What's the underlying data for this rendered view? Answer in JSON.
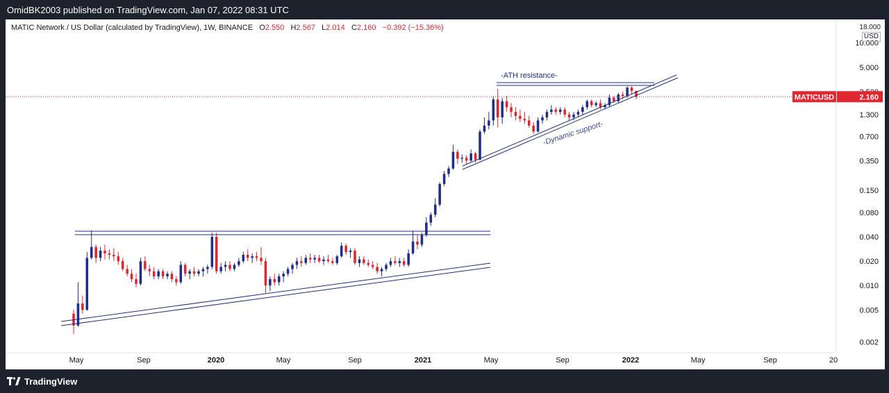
{
  "header": {
    "publisher_line": "OmidBK2003 published on TradingView.com, Jan 07, 2022 08:31 UTC"
  },
  "legend": {
    "symbol_title": "MATIC Network / US Dollar (calculated by TradingView), 1W, BINANCE",
    "open_label": "O",
    "open_value": "2.550",
    "high_label": "H",
    "high_value": "2.567",
    "low_label": "L",
    "low_value": "2.014",
    "close_label": "C",
    "close_value": "2.160",
    "change": "−0.392 (−15.36%)"
  },
  "price_scale": {
    "top_label": "18.000",
    "unit": "USD",
    "ticks": [
      "10.000",
      "5.000",
      "2.500",
      "1.300",
      "0.700",
      "0.350",
      "0.150",
      "0.080",
      "0.040",
      "0.020",
      "0.010",
      "0.005",
      "0.002"
    ],
    "current_symbol": "MATICUSD",
    "current_price": "2.160"
  },
  "time_scale": {
    "ticks": [
      "May",
      "Sep",
      "2020",
      "May",
      "Sep",
      "2021",
      "May",
      "Sep",
      "2022",
      "May",
      "Sep",
      "20"
    ],
    "bold_ticks": [
      "2020",
      "2021",
      "2022"
    ]
  },
  "annotations": {
    "ath_resistance": "-ATH resistance-",
    "dynamic_support": "-Dynamic support-"
  },
  "colors": {
    "up": "#1e2e8a",
    "down": "#e0262f",
    "line": "#1e2e8a",
    "current_price_line": "#e0262f",
    "background": "#ffffff",
    "frame": "#1e222d"
  },
  "footer": {
    "brand": "TradingView"
  },
  "chart_data": {
    "type": "candlestick",
    "title": "MATIC Network / US Dollar (calculated by TradingView), 1W, BINANCE",
    "y_scale": "log",
    "ylim": [
      0.0018,
      18
    ],
    "x_ticks": [
      "May",
      "Sep",
      "2020",
      "May",
      "Sep",
      "2021",
      "May",
      "Sep",
      "2022",
      "May",
      "Sep",
      "20"
    ],
    "last_close": 2.16,
    "last_ohlc": {
      "open": 2.55,
      "high": 2.567,
      "low": 2.014,
      "close": 2.16
    },
    "series": [
      {
        "o": 0.0045,
        "h": 0.005,
        "l": 0.0025,
        "c": 0.0032
      },
      {
        "o": 0.0032,
        "h": 0.011,
        "l": 0.0031,
        "c": 0.006
      },
      {
        "o": 0.006,
        "h": 0.0075,
        "l": 0.0045,
        "c": 0.005
      },
      {
        "o": 0.005,
        "h": 0.026,
        "l": 0.0049,
        "c": 0.022
      },
      {
        "o": 0.022,
        "h": 0.048,
        "l": 0.021,
        "c": 0.03
      },
      {
        "o": 0.03,
        "h": 0.032,
        "l": 0.019,
        "c": 0.022
      },
      {
        "o": 0.022,
        "h": 0.03,
        "l": 0.02,
        "c": 0.027
      },
      {
        "o": 0.027,
        "h": 0.032,
        "l": 0.021,
        "c": 0.025
      },
      {
        "o": 0.025,
        "h": 0.028,
        "l": 0.021,
        "c": 0.024
      },
      {
        "o": 0.024,
        "h": 0.029,
        "l": 0.02,
        "c": 0.023
      },
      {
        "o": 0.023,
        "h": 0.026,
        "l": 0.018,
        "c": 0.02
      },
      {
        "o": 0.02,
        "h": 0.022,
        "l": 0.015,
        "c": 0.016
      },
      {
        "o": 0.016,
        "h": 0.018,
        "l": 0.013,
        "c": 0.014
      },
      {
        "o": 0.014,
        "h": 0.016,
        "l": 0.011,
        "c": 0.012
      },
      {
        "o": 0.012,
        "h": 0.014,
        "l": 0.0095,
        "c": 0.0105
      },
      {
        "o": 0.0105,
        "h": 0.022,
        "l": 0.01,
        "c": 0.02
      },
      {
        "o": 0.02,
        "h": 0.023,
        "l": 0.015,
        "c": 0.016
      },
      {
        "o": 0.016,
        "h": 0.018,
        "l": 0.013,
        "c": 0.015
      },
      {
        "o": 0.015,
        "h": 0.017,
        "l": 0.012,
        "c": 0.013
      },
      {
        "o": 0.013,
        "h": 0.016,
        "l": 0.012,
        "c": 0.015
      },
      {
        "o": 0.015,
        "h": 0.016,
        "l": 0.012,
        "c": 0.013
      },
      {
        "o": 0.013,
        "h": 0.015,
        "l": 0.012,
        "c": 0.014
      },
      {
        "o": 0.014,
        "h": 0.015,
        "l": 0.011,
        "c": 0.012
      },
      {
        "o": 0.012,
        "h": 0.013,
        "l": 0.01,
        "c": 0.011
      },
      {
        "o": 0.011,
        "h": 0.02,
        "l": 0.0105,
        "c": 0.018
      },
      {
        "o": 0.018,
        "h": 0.019,
        "l": 0.013,
        "c": 0.014
      },
      {
        "o": 0.014,
        "h": 0.016,
        "l": 0.012,
        "c": 0.015
      },
      {
        "o": 0.015,
        "h": 0.017,
        "l": 0.013,
        "c": 0.014
      },
      {
        "o": 0.014,
        "h": 0.016,
        "l": 0.013,
        "c": 0.015
      },
      {
        "o": 0.015,
        "h": 0.017,
        "l": 0.013,
        "c": 0.016
      },
      {
        "o": 0.016,
        "h": 0.018,
        "l": 0.014,
        "c": 0.017
      },
      {
        "o": 0.017,
        "h": 0.045,
        "l": 0.016,
        "c": 0.04
      },
      {
        "o": 0.04,
        "h": 0.045,
        "l": 0.014,
        "c": 0.015
      },
      {
        "o": 0.015,
        "h": 0.019,
        "l": 0.014,
        "c": 0.017
      },
      {
        "o": 0.017,
        "h": 0.02,
        "l": 0.015,
        "c": 0.018
      },
      {
        "o": 0.018,
        "h": 0.02,
        "l": 0.015,
        "c": 0.016
      },
      {
        "o": 0.016,
        "h": 0.019,
        "l": 0.015,
        "c": 0.018
      },
      {
        "o": 0.018,
        "h": 0.022,
        "l": 0.017,
        "c": 0.02
      },
      {
        "o": 0.02,
        "h": 0.026,
        "l": 0.019,
        "c": 0.024
      },
      {
        "o": 0.024,
        "h": 0.028,
        "l": 0.02,
        "c": 0.022
      },
      {
        "o": 0.022,
        "h": 0.025,
        "l": 0.019,
        "c": 0.023
      },
      {
        "o": 0.023,
        "h": 0.026,
        "l": 0.02,
        "c": 0.022
      },
      {
        "o": 0.022,
        "h": 0.03,
        "l": 0.018,
        "c": 0.02
      },
      {
        "o": 0.02,
        "h": 0.022,
        "l": 0.008,
        "c": 0.01
      },
      {
        "o": 0.01,
        "h": 0.013,
        "l": 0.0085,
        "c": 0.012
      },
      {
        "o": 0.012,
        "h": 0.014,
        "l": 0.01,
        "c": 0.011
      },
      {
        "o": 0.011,
        "h": 0.014,
        "l": 0.01,
        "c": 0.013
      },
      {
        "o": 0.013,
        "h": 0.015,
        "l": 0.011,
        "c": 0.014
      },
      {
        "o": 0.014,
        "h": 0.017,
        "l": 0.013,
        "c": 0.016
      },
      {
        "o": 0.016,
        "h": 0.019,
        "l": 0.014,
        "c": 0.018
      },
      {
        "o": 0.018,
        "h": 0.022,
        "l": 0.016,
        "c": 0.02
      },
      {
        "o": 0.02,
        "h": 0.023,
        "l": 0.017,
        "c": 0.019
      },
      {
        "o": 0.019,
        "h": 0.024,
        "l": 0.018,
        "c": 0.022
      },
      {
        "o": 0.022,
        "h": 0.025,
        "l": 0.019,
        "c": 0.021
      },
      {
        "o": 0.021,
        "h": 0.024,
        "l": 0.019,
        "c": 0.022
      },
      {
        "o": 0.022,
        "h": 0.024,
        "l": 0.019,
        "c": 0.02
      },
      {
        "o": 0.02,
        "h": 0.023,
        "l": 0.018,
        "c": 0.021
      },
      {
        "o": 0.021,
        "h": 0.024,
        "l": 0.019,
        "c": 0.02
      },
      {
        "o": 0.02,
        "h": 0.022,
        "l": 0.018,
        "c": 0.019
      },
      {
        "o": 0.019,
        "h": 0.024,
        "l": 0.018,
        "c": 0.023
      },
      {
        "o": 0.023,
        "h": 0.034,
        "l": 0.022,
        "c": 0.031
      },
      {
        "o": 0.031,
        "h": 0.033,
        "l": 0.024,
        "c": 0.026
      },
      {
        "o": 0.026,
        "h": 0.029,
        "l": 0.022,
        "c": 0.027
      },
      {
        "o": 0.027,
        "h": 0.029,
        "l": 0.018,
        "c": 0.019
      },
      {
        "o": 0.019,
        "h": 0.023,
        "l": 0.017,
        "c": 0.021
      },
      {
        "o": 0.021,
        "h": 0.023,
        "l": 0.018,
        "c": 0.019
      },
      {
        "o": 0.019,
        "h": 0.021,
        "l": 0.017,
        "c": 0.018
      },
      {
        "o": 0.018,
        "h": 0.02,
        "l": 0.016,
        "c": 0.017
      },
      {
        "o": 0.017,
        "h": 0.019,
        "l": 0.014,
        "c": 0.015
      },
      {
        "o": 0.015,
        "h": 0.017,
        "l": 0.013,
        "c": 0.016
      },
      {
        "o": 0.016,
        "h": 0.019,
        "l": 0.015,
        "c": 0.018
      },
      {
        "o": 0.018,
        "h": 0.022,
        "l": 0.017,
        "c": 0.02
      },
      {
        "o": 0.02,
        "h": 0.023,
        "l": 0.018,
        "c": 0.019
      },
      {
        "o": 0.019,
        "h": 0.022,
        "l": 0.017,
        "c": 0.02
      },
      {
        "o": 0.02,
        "h": 0.022,
        "l": 0.017,
        "c": 0.018
      },
      {
        "o": 0.018,
        "h": 0.028,
        "l": 0.017,
        "c": 0.025
      },
      {
        "o": 0.025,
        "h": 0.048,
        "l": 0.024,
        "c": 0.035
      },
      {
        "o": 0.035,
        "h": 0.042,
        "l": 0.028,
        "c": 0.032
      },
      {
        "o": 0.032,
        "h": 0.045,
        "l": 0.03,
        "c": 0.042
      },
      {
        "o": 0.042,
        "h": 0.07,
        "l": 0.04,
        "c": 0.06
      },
      {
        "o": 0.06,
        "h": 0.08,
        "l": 0.055,
        "c": 0.075
      },
      {
        "o": 0.075,
        "h": 0.12,
        "l": 0.07,
        "c": 0.1
      },
      {
        "o": 0.1,
        "h": 0.19,
        "l": 0.095,
        "c": 0.18
      },
      {
        "o": 0.18,
        "h": 0.26,
        "l": 0.17,
        "c": 0.24
      },
      {
        "o": 0.24,
        "h": 0.3,
        "l": 0.22,
        "c": 0.28
      },
      {
        "o": 0.28,
        "h": 0.55,
        "l": 0.27,
        "c": 0.45
      },
      {
        "o": 0.45,
        "h": 0.48,
        "l": 0.32,
        "c": 0.37
      },
      {
        "o": 0.37,
        "h": 0.42,
        "l": 0.33,
        "c": 0.38
      },
      {
        "o": 0.38,
        "h": 0.41,
        "l": 0.32,
        "c": 0.35
      },
      {
        "o": 0.35,
        "h": 0.48,
        "l": 0.34,
        "c": 0.43
      },
      {
        "o": 0.43,
        "h": 0.45,
        "l": 0.33,
        "c": 0.36
      },
      {
        "o": 0.36,
        "h": 0.85,
        "l": 0.35,
        "c": 0.8
      },
      {
        "o": 0.8,
        "h": 1.2,
        "l": 0.75,
        "c": 0.95
      },
      {
        "o": 0.95,
        "h": 1.4,
        "l": 0.85,
        "c": 1.1
      },
      {
        "o": 1.1,
        "h": 2.2,
        "l": 0.95,
        "c": 2.0
      },
      {
        "o": 2.0,
        "h": 2.7,
        "l": 0.9,
        "c": 1.2
      },
      {
        "o": 1.2,
        "h": 2.1,
        "l": 1.0,
        "c": 1.9
      },
      {
        "o": 1.9,
        "h": 2.2,
        "l": 1.4,
        "c": 1.6
      },
      {
        "o": 1.6,
        "h": 1.8,
        "l": 1.2,
        "c": 1.4
      },
      {
        "o": 1.4,
        "h": 1.6,
        "l": 1.1,
        "c": 1.25
      },
      {
        "o": 1.25,
        "h": 1.5,
        "l": 1.05,
        "c": 1.15
      },
      {
        "o": 1.15,
        "h": 1.4,
        "l": 1.0,
        "c": 1.1
      },
      {
        "o": 1.1,
        "h": 1.25,
        "l": 0.9,
        "c": 0.95
      },
      {
        "o": 0.95,
        "h": 1.05,
        "l": 0.75,
        "c": 0.8
      },
      {
        "o": 0.8,
        "h": 1.2,
        "l": 0.78,
        "c": 1.1
      },
      {
        "o": 1.1,
        "h": 1.3,
        "l": 1.0,
        "c": 1.2
      },
      {
        "o": 1.2,
        "h": 1.5,
        "l": 1.1,
        "c": 1.4
      },
      {
        "o": 1.4,
        "h": 1.7,
        "l": 1.3,
        "c": 1.5
      },
      {
        "o": 1.5,
        "h": 1.6,
        "l": 1.3,
        "c": 1.4
      },
      {
        "o": 1.4,
        "h": 1.6,
        "l": 1.3,
        "c": 1.5
      },
      {
        "o": 1.5,
        "h": 1.6,
        "l": 1.2,
        "c": 1.3
      },
      {
        "o": 1.3,
        "h": 1.4,
        "l": 1.1,
        "c": 1.2
      },
      {
        "o": 1.2,
        "h": 1.4,
        "l": 1.1,
        "c": 1.3
      },
      {
        "o": 1.3,
        "h": 1.5,
        "l": 1.2,
        "c": 1.4
      },
      {
        "o": 1.4,
        "h": 1.7,
        "l": 1.3,
        "c": 1.6
      },
      {
        "o": 1.6,
        "h": 2.0,
        "l": 1.5,
        "c": 1.9
      },
      {
        "o": 1.9,
        "h": 2.0,
        "l": 1.6,
        "c": 1.7
      },
      {
        "o": 1.7,
        "h": 1.9,
        "l": 1.6,
        "c": 1.8
      },
      {
        "o": 1.8,
        "h": 2.0,
        "l": 1.5,
        "c": 1.6
      },
      {
        "o": 1.6,
        "h": 1.8,
        "l": 1.5,
        "c": 1.7
      },
      {
        "o": 1.7,
        "h": 2.3,
        "l": 1.6,
        "c": 2.1
      },
      {
        "o": 2.1,
        "h": 2.2,
        "l": 1.8,
        "c": 1.9
      },
      {
        "o": 1.9,
        "h": 2.4,
        "l": 1.8,
        "c": 2.3
      },
      {
        "o": 2.3,
        "h": 2.5,
        "l": 2.0,
        "c": 2.2
      },
      {
        "o": 2.2,
        "h": 2.9,
        "l": 2.1,
        "c": 2.8
      },
      {
        "o": 2.8,
        "h": 2.9,
        "l": 2.3,
        "c": 2.55
      },
      {
        "o": 2.55,
        "h": 2.567,
        "l": 2.014,
        "c": 2.16
      }
    ]
  }
}
